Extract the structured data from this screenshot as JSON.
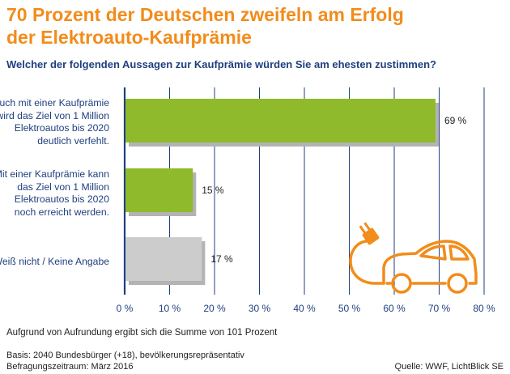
{
  "title_line1": "70 Prozent der Deutschen zweifeln am Erfolg",
  "title_line2": "der Elektroauto-Kaufprämie",
  "question": "Welcher der folgenden Aussagen zur Kaufprämie würden Sie am ehesten zustimmen?",
  "categories_text": [
    [
      "Auch mit einer Kaufprämie",
      "wird das Ziel von 1 Million",
      "Elektroautos bis 2020",
      "deutlich verfehlt."
    ],
    [
      "Mit einer Kaufprämie kann",
      "das Ziel von 1 Million",
      "Elektroautos bis 2020",
      "noch erreicht werden."
    ],
    [
      "Weiß nicht / Keine Angabe"
    ]
  ],
  "footnote": "Aufgrund von Aufrundung ergibt sich die Summe von 101 Prozent",
  "basis": "Basis: 2040 Bundesbürger (+18), bevölkerungsrepräsentativ",
  "period": "Befragungszeitraum: März 2016",
  "source": "Quelle: WWF, LichtBlick SE",
  "colors": {
    "title": "#f28c1b",
    "text": "#1f3f7f",
    "bar_green": "#8fba2b",
    "bar_grey": "#cccccc",
    "shadow": "#b3b3b3",
    "axis": "#1f3f7f",
    "icon": "#f28c1b"
  },
  "icon": "electric-car-plug-icon",
  "chart_data": {
    "type": "bar",
    "orientation": "horizontal",
    "categories": [
      "Auch mit einer Kaufprämie wird das Ziel von 1 Million Elektroautos bis 2020 deutlich verfehlt.",
      "Mit einer Kaufprämie kann das Ziel von 1 Million Elektroautos bis 2020 noch erreicht werden.",
      "Weiß nicht / Keine Angabe"
    ],
    "values": [
      69,
      15,
      17
    ],
    "value_labels": [
      "69 %",
      "15 %",
      "17 %"
    ],
    "bar_colors": [
      "#8fba2b",
      "#8fba2b",
      "#cccccc"
    ],
    "xlim": [
      0,
      80
    ],
    "xticks": [
      0,
      10,
      20,
      30,
      40,
      50,
      60,
      70,
      80
    ],
    "xtick_labels": [
      "0 %",
      "10 %",
      "20 %",
      "30 %",
      "40 %",
      "50 %",
      "60 %",
      "70 %",
      "80 %"
    ],
    "grid": true,
    "unit": "%"
  }
}
